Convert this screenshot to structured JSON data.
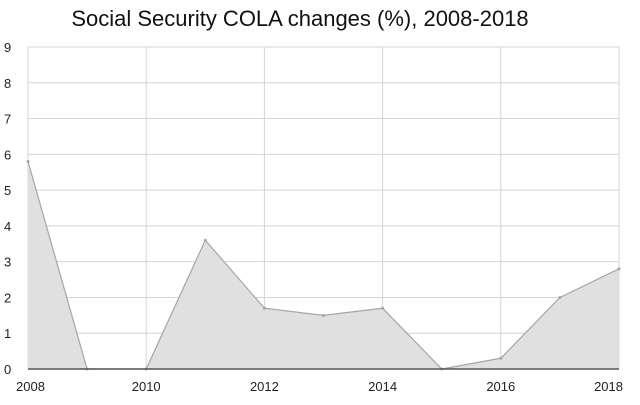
{
  "chart_data": {
    "type": "area",
    "title": "Social Security COLA changes (%), 2008-2018",
    "xlabel": "",
    "ylabel": "",
    "x": [
      2008,
      2009,
      2010,
      2011,
      2012,
      2013,
      2014,
      2015,
      2016,
      2017,
      2018
    ],
    "values": [
      5.8,
      0,
      0,
      3.6,
      1.7,
      1.5,
      1.7,
      0,
      0.3,
      2.0,
      2.8
    ],
    "xlim": [
      2008,
      2018
    ],
    "ylim": [
      0,
      9
    ],
    "x_ticks": [
      "2008",
      "2010",
      "2012",
      "2014",
      "2016",
      "2018"
    ],
    "y_ticks": [
      "0",
      "1",
      "2",
      "3",
      "4",
      "5",
      "6",
      "7",
      "8",
      "9"
    ],
    "grid": true,
    "colors": {
      "fill": "#e0e0e0",
      "line": "#a6a6a6",
      "grid": "#d4d4d4"
    }
  }
}
